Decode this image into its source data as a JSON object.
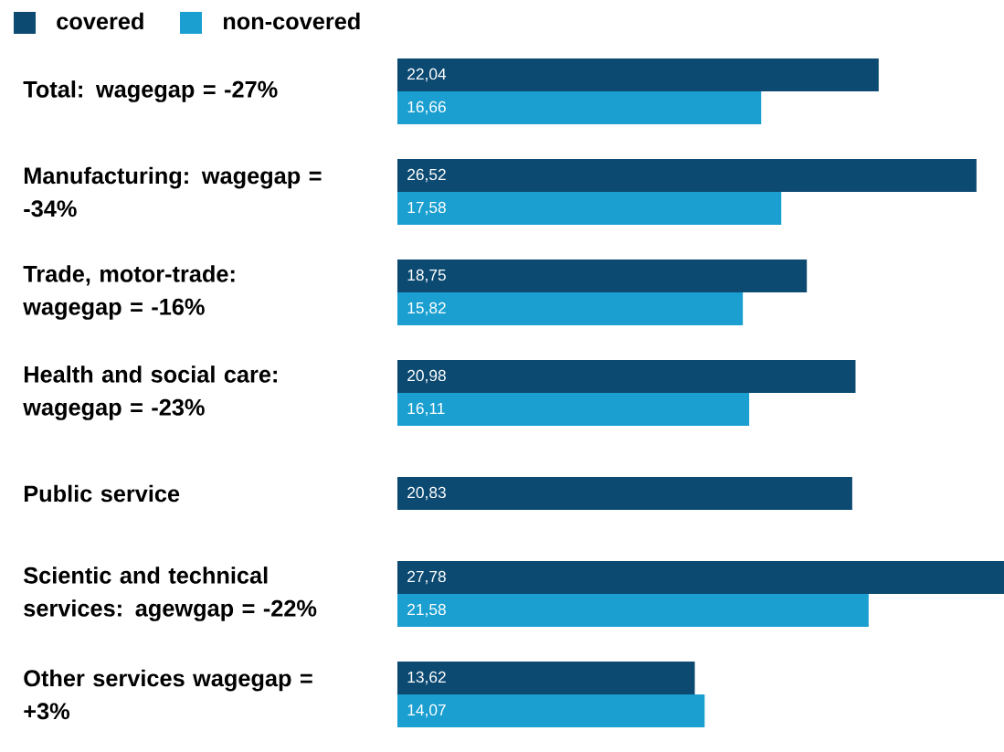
{
  "chart_data": {
    "type": "bar",
    "orientation": "horizontal",
    "legend": "top left",
    "categories": [
      "Total: wagegap = -27%",
      "Manufacturing: wagegap = -34%",
      "Trade, motor-trade: wagegap = -16%",
      "Health and social care: wagegap = -23%",
      "Public service",
      "Scientic and technical services: agewgap = -22%",
      "Other services wagegap = +3%"
    ],
    "series": [
      {
        "name": "covered",
        "color": "#0d4a72",
        "values": [
          22.04,
          26.52,
          18.75,
          20.98,
          20.83,
          27.78,
          13.62
        ],
        "value_labels": [
          "22,04",
          "26,52",
          "18,75",
          "20,98",
          "20,83",
          "27,78",
          "13,62"
        ]
      },
      {
        "name": "non-covered",
        "color": "#1a9fd0",
        "values": [
          16.66,
          17.58,
          15.82,
          16.11,
          null,
          21.58,
          14.07
        ],
        "value_labels": [
          "16,66",
          "17,58",
          "15,82",
          "16,11",
          null,
          "21,58",
          "14,07"
        ]
      }
    ]
  }
}
